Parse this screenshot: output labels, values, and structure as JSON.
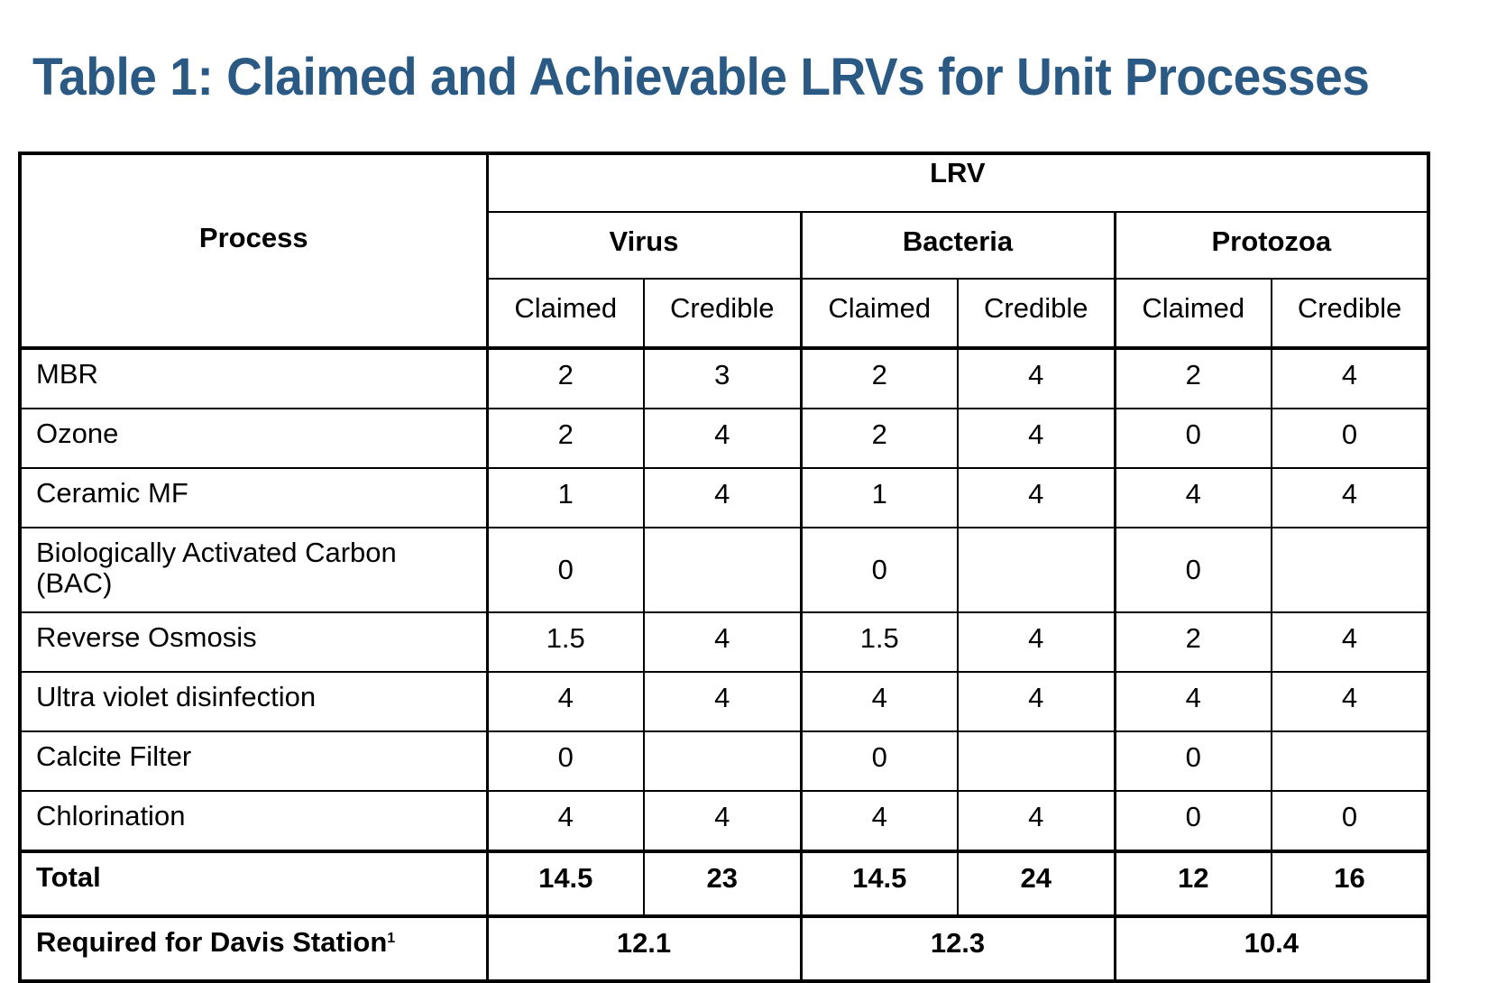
{
  "title": "Table 1: Claimed and Achievable LRVs for Unit Processes",
  "table": {
    "process_header": "Process",
    "lrv_header": "LRV",
    "organisms": [
      "Virus",
      "Bacteria",
      "Protozoa"
    ],
    "sub_headers": [
      "Claimed",
      "Credible"
    ],
    "rows": [
      {
        "process": "MBR",
        "values": [
          "2",
          "3",
          "2",
          "4",
          "2",
          "4"
        ]
      },
      {
        "process": "Ozone",
        "values": [
          "2",
          "4",
          "2",
          "4",
          "0",
          "0"
        ]
      },
      {
        "process": "Ceramic MF",
        "values": [
          "1",
          "4",
          "1",
          "4",
          "4",
          "4"
        ]
      },
      {
        "process": "Biologically Activated Carbon (BAC)",
        "values": [
          "0",
          "",
          "0",
          "",
          "0",
          ""
        ]
      },
      {
        "process": "Reverse Osmosis",
        "values": [
          "1.5",
          "4",
          "1.5",
          "4",
          "2",
          "4"
        ]
      },
      {
        "process": "Ultra violet disinfection",
        "values": [
          "4",
          "4",
          "4",
          "4",
          "4",
          "4"
        ]
      },
      {
        "process": "Calcite Filter",
        "values": [
          "0",
          "",
          "0",
          "",
          "0",
          ""
        ]
      },
      {
        "process": "Chlorination",
        "values": [
          "4",
          "4",
          "4",
          "4",
          "0",
          "0"
        ]
      }
    ],
    "total": {
      "label": "Total",
      "values": [
        "14.5",
        "23",
        "14.5",
        "24",
        "12",
        "16"
      ]
    },
    "required": {
      "label": "Required for Davis Station",
      "footnote": "1",
      "values": [
        "12.1",
        "12.3",
        "10.4"
      ]
    }
  }
}
